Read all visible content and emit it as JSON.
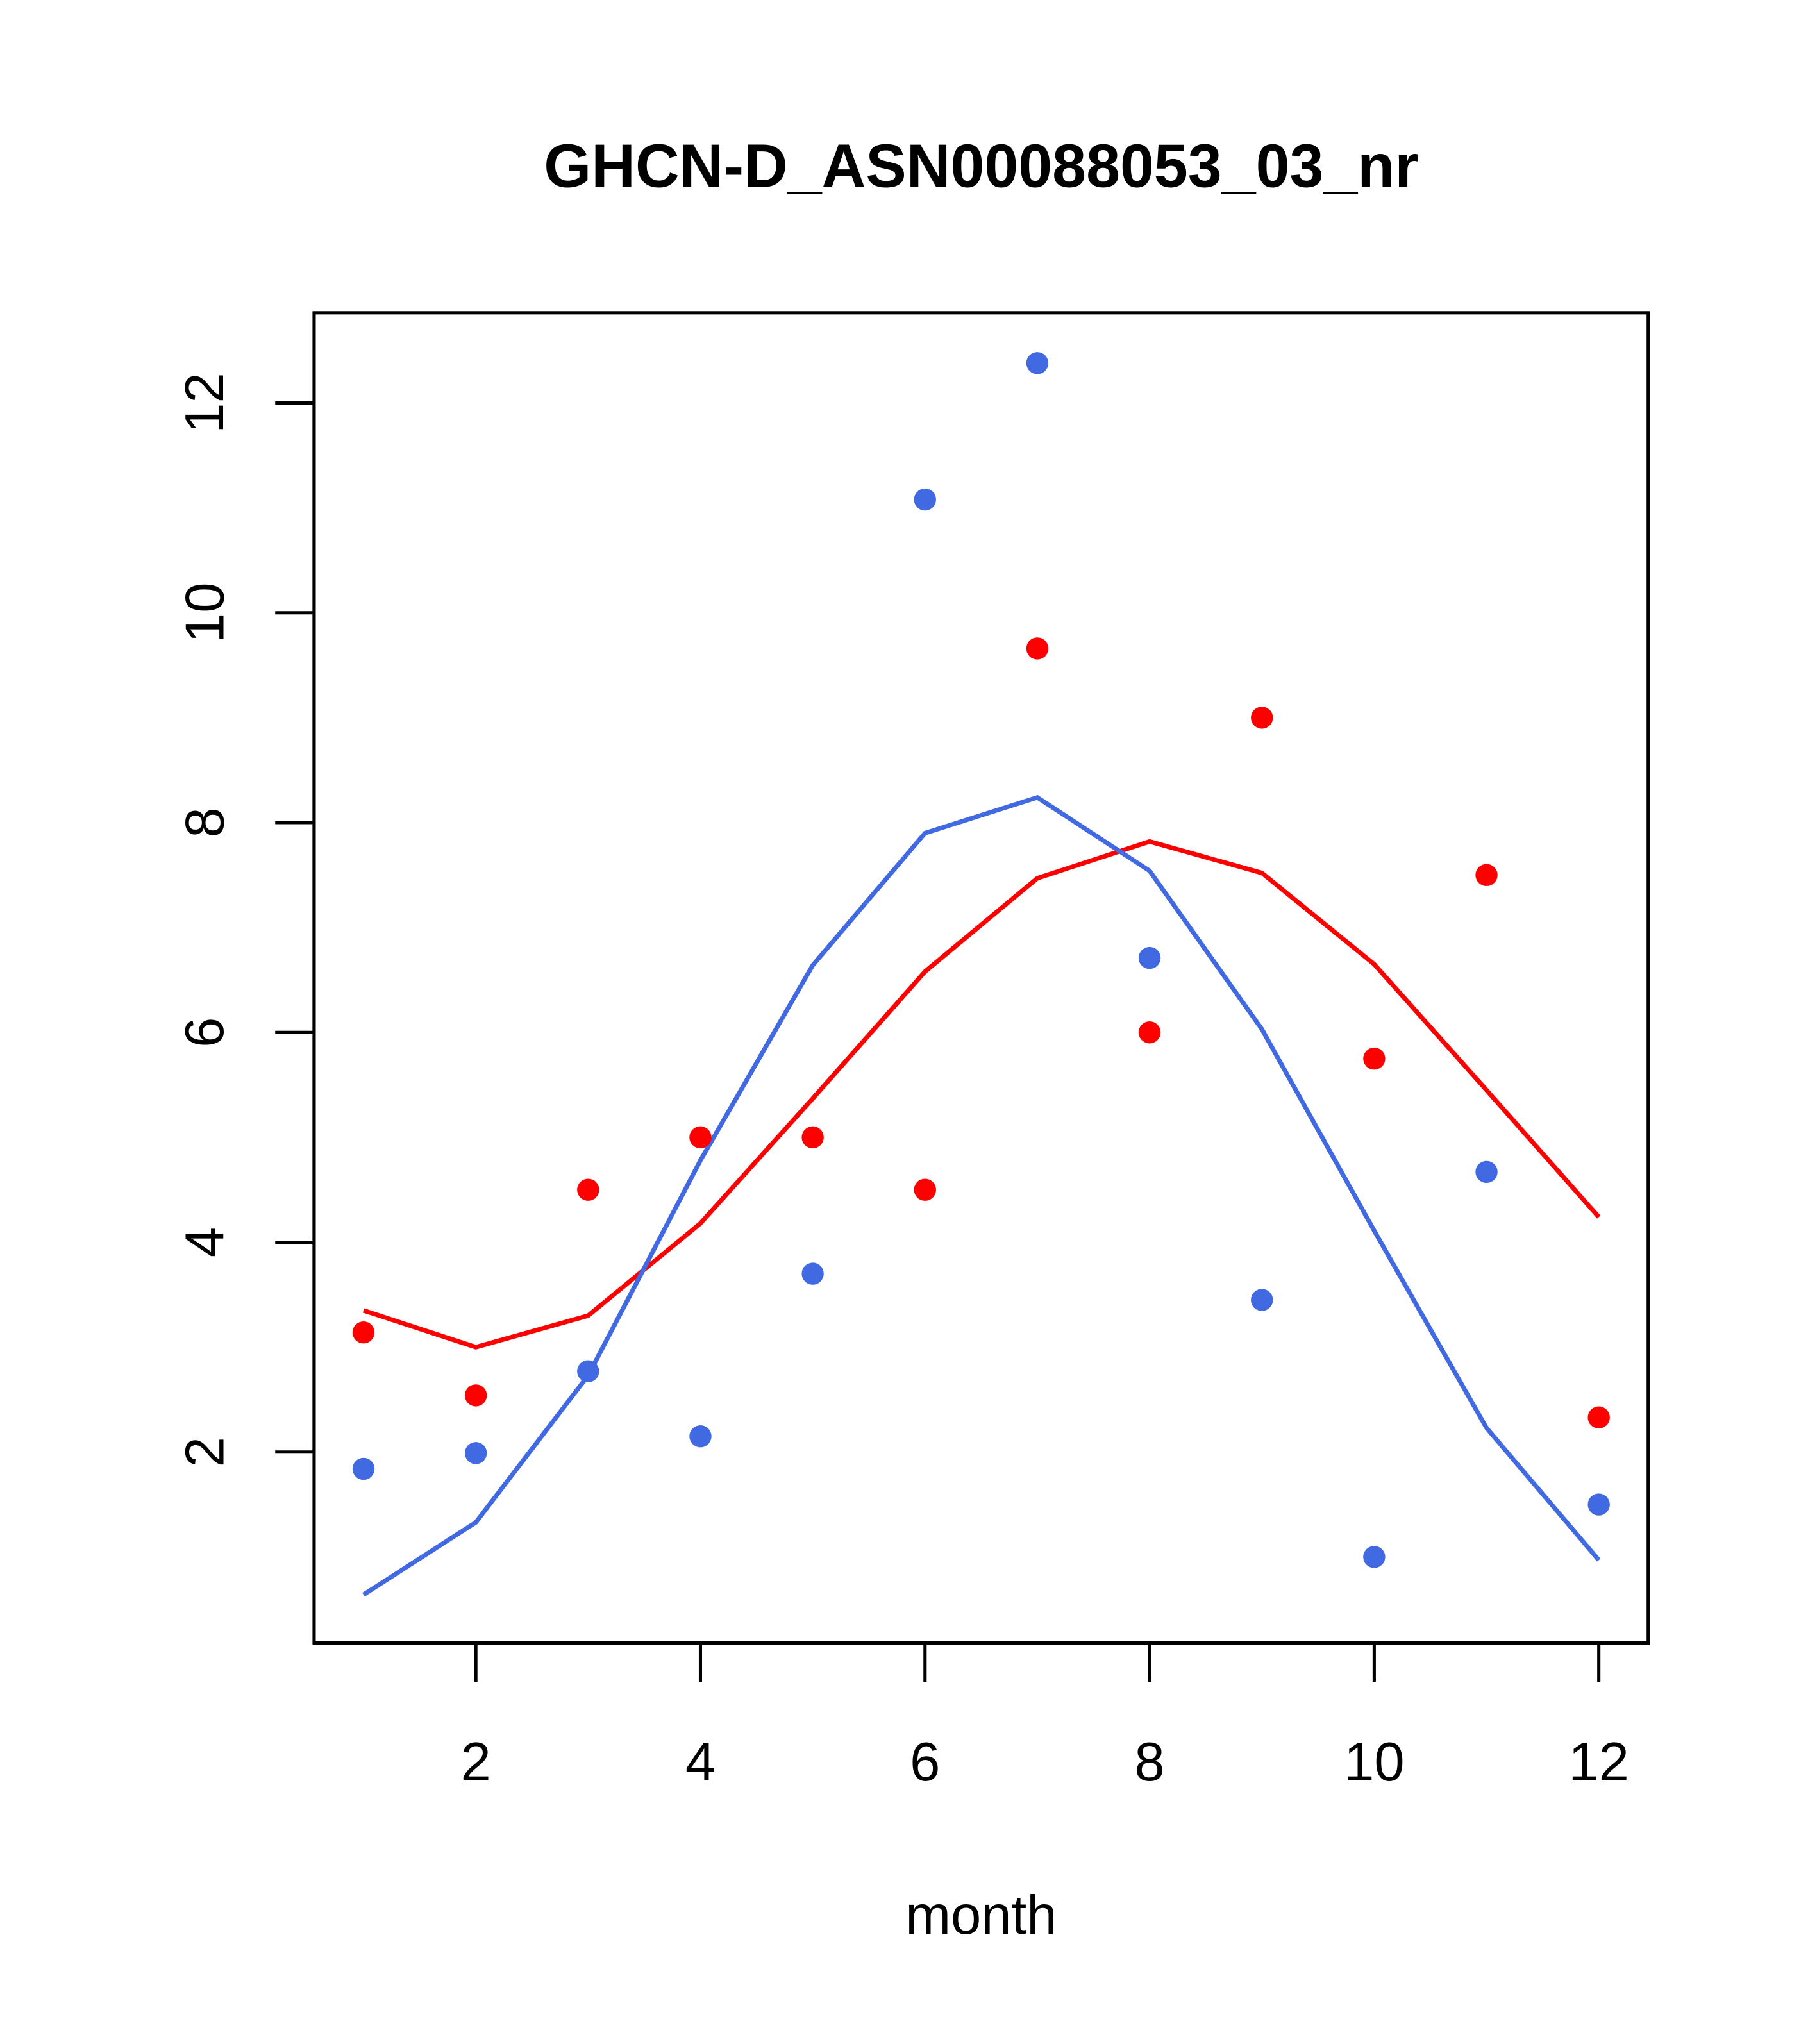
{
  "chart_data": {
    "type": "scatter",
    "title": "GHCN-D_ASN00088053_03_nr",
    "xlabel": "month",
    "ylabel": "",
    "xlim": [
      0.56,
      12.44
    ],
    "ylim": [
      0.18,
      12.86
    ],
    "xticks": [
      2,
      4,
      6,
      8,
      10,
      12
    ],
    "yticks": [
      2,
      4,
      6,
      8,
      10,
      12
    ],
    "grid": false,
    "x": [
      1,
      2,
      3,
      4,
      5,
      6,
      7,
      8,
      9,
      10,
      11,
      12
    ],
    "series": [
      {
        "name": "red points",
        "kind": "points",
        "color": "#FF0000",
        "values": [
          3.14,
          2.54,
          4.5,
          5.0,
          5.0,
          4.5,
          9.66,
          6.0,
          9.0,
          5.75,
          7.5,
          2.33
        ]
      },
      {
        "name": "blue points",
        "kind": "points",
        "color": "#4169E1",
        "values": [
          1.84,
          1.99,
          2.77,
          2.15,
          3.7,
          11.08,
          12.38,
          6.71,
          3.45,
          1.0,
          4.67,
          1.5
        ]
      },
      {
        "name": "red line",
        "kind": "line",
        "color": "#FF0000",
        "values": [
          3.35,
          3.0,
          3.3,
          4.18,
          5.37,
          6.58,
          7.47,
          7.82,
          7.52,
          6.65,
          5.45,
          4.24
        ]
      },
      {
        "name": "blue line",
        "kind": "line",
        "color": "#4169E1",
        "values": [
          0.64,
          1.33,
          2.73,
          4.78,
          6.64,
          7.9,
          8.24,
          7.54,
          6.03,
          4.11,
          2.23,
          0.97
        ]
      }
    ]
  }
}
